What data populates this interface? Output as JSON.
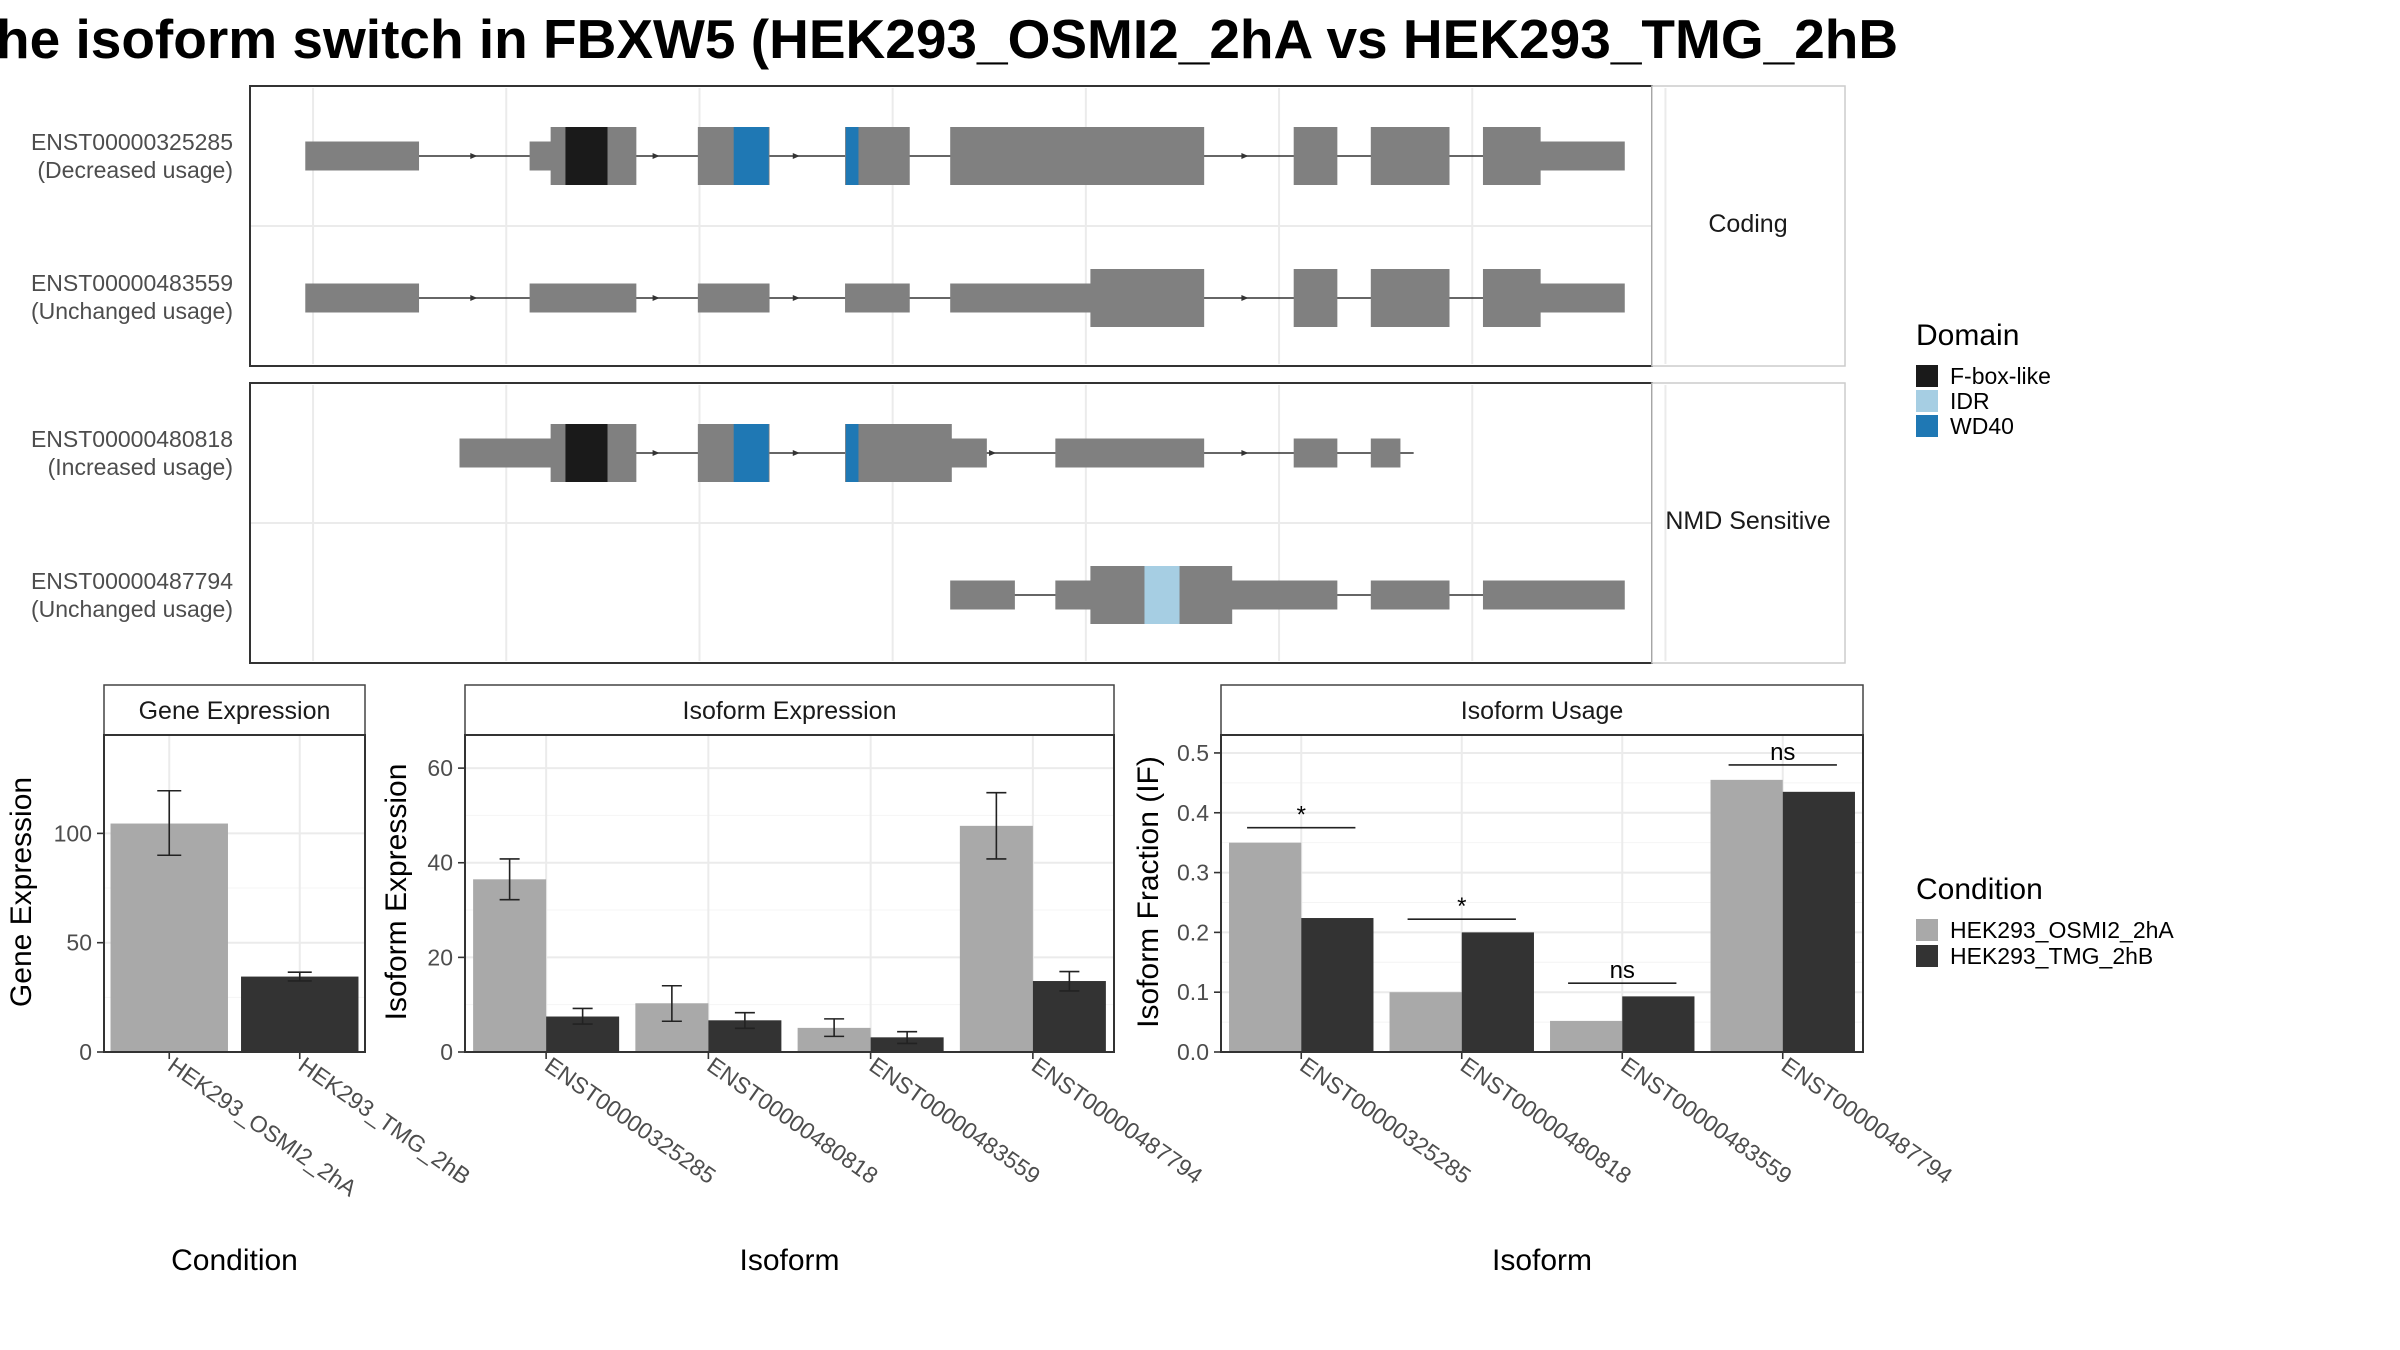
{
  "title": "he isoform switch in FBXW5 (HEK293_OSMI2_2hA vs HEK293_TMG_2hB",
  "colors": {
    "exon": "#808080",
    "intron": "#333333",
    "cond1": "#a9a9a9",
    "cond2": "#333333",
    "panel_border": "#444444",
    "grid": "#ebebeb"
  },
  "domain_legend": {
    "title": "Domain",
    "items": [
      {
        "label": "F-box-like",
        "color": "#1a1a1a"
      },
      {
        "label": "IDR",
        "color": "#a6cee3"
      },
      {
        "label": "WD40",
        "color": "#1f78b4"
      }
    ]
  },
  "condition_legend": {
    "title": "Condition",
    "items": [
      {
        "label": "HEK293_OSMI2_2hA",
        "color": "#a9a9a9"
      },
      {
        "label": "HEK293_TMG_2hB",
        "color": "#333333"
      }
    ]
  },
  "structure": {
    "groups": [
      {
        "label": "Coding",
        "transcripts": [
          {
            "id": "ENST00000325285",
            "usage": "(Decreased usage)",
            "span": [
              0.04,
              0.93
            ],
            "exons": [
              [
                0.04,
                0.12,
                "n"
              ],
              [
                0.2,
                0.215,
                "n"
              ],
              [
                0.215,
                0.275,
                "w"
              ],
              [
                0.32,
                0.34,
                "w"
              ],
              [
                0.34,
                0.37,
                "w"
              ],
              [
                0.425,
                0.435,
                "w"
              ],
              [
                0.435,
                0.47,
                "w"
              ],
              [
                0.5,
                0.575,
                "w"
              ],
              [
                0.575,
                0.68,
                "w"
              ],
              [
                0.745,
                0.775,
                "w"
              ],
              [
                0.8,
                0.855,
                "w"
              ],
              [
                0.88,
                0.92,
                "w"
              ],
              [
                0.92,
                0.98,
                "n"
              ]
            ],
            "domains": [
              [
                0.225,
                0.255,
                0
              ],
              [
                0.345,
                0.37,
                2
              ],
              [
                0.425,
                0.434,
                2
              ]
            ],
            "arrows": [
              0.16,
              0.29,
              0.39,
              0.53,
              0.71
            ]
          },
          {
            "id": "ENST00000483559",
            "usage": "(Unchanged usage)",
            "span": [
              0.04,
              0.93
            ],
            "exons": [
              [
                0.04,
                0.12,
                "n"
              ],
              [
                0.2,
                0.275,
                "n"
              ],
              [
                0.32,
                0.37,
                "n"
              ],
              [
                0.425,
                0.47,
                "n"
              ],
              [
                0.5,
                0.6,
                "n"
              ],
              [
                0.6,
                0.68,
                "w"
              ],
              [
                0.745,
                0.775,
                "w"
              ],
              [
                0.8,
                0.855,
                "w"
              ],
              [
                0.88,
                0.92,
                "w"
              ],
              [
                0.92,
                0.98,
                "n"
              ]
            ],
            "domains": [],
            "arrows": [
              0.16,
              0.29,
              0.39,
              0.53,
              0.71
            ]
          }
        ]
      },
      {
        "label": "NMD Sensitive",
        "transcripts": [
          {
            "id": "ENST00000480818",
            "usage": "(Increased usage)",
            "span": [
              0.15,
              0.83
            ],
            "exons": [
              [
                0.15,
                0.215,
                "n"
              ],
              [
                0.215,
                0.275,
                "w"
              ],
              [
                0.32,
                0.37,
                "w"
              ],
              [
                0.425,
                0.435,
                "w"
              ],
              [
                0.435,
                0.5,
                "w"
              ],
              [
                0.5,
                0.525,
                "n"
              ],
              [
                0.575,
                0.68,
                "n"
              ],
              [
                0.745,
                0.775,
                "n"
              ],
              [
                0.8,
                0.82,
                "n"
              ]
            ],
            "domains": [
              [
                0.225,
                0.255,
                0
              ],
              [
                0.345,
                0.37,
                2
              ],
              [
                0.425,
                0.434,
                2
              ]
            ],
            "arrows": [
              0.29,
              0.39,
              0.53,
              0.71
            ]
          },
          {
            "id": "ENST00000487794",
            "usage": "(Unchanged usage)",
            "span": [
              0.5,
              0.93
            ],
            "exons": [
              [
                0.5,
                0.545,
                "n"
              ],
              [
                0.575,
                0.6,
                "n"
              ],
              [
                0.6,
                0.7,
                "w"
              ],
              [
                0.7,
                0.745,
                "n"
              ],
              [
                0.745,
                0.775,
                "n"
              ],
              [
                0.8,
                0.855,
                "n"
              ],
              [
                0.88,
                0.98,
                "n"
              ]
            ],
            "domains": [
              [
                0.638,
                0.663,
                1
              ]
            ],
            "arrows": []
          }
        ]
      }
    ]
  },
  "chart_data": [
    {
      "type": "bar",
      "panel": "Gene Expression",
      "xlabel": "Condition",
      "ylabel": "Gene Expression",
      "categories": [
        "HEK293_OSMI2_2hA",
        "HEK293_TMG_2hB"
      ],
      "values": [
        104.5,
        34.5
      ],
      "error_low": [
        90,
        32.5
      ],
      "error_high": [
        119.5,
        36.5
      ],
      "ylim": [
        0,
        145
      ],
      "yticks": [
        0,
        50,
        100
      ]
    },
    {
      "type": "bar",
      "panel": "Isoform Expression",
      "xlabel": "Isoform",
      "ylabel": "Isoform Expression",
      "categories": [
        "ENST00000325285",
        "ENST00000480818",
        "ENST00000483559",
        "ENST00000487794"
      ],
      "series": [
        {
          "name": "HEK293_OSMI2_2hA",
          "values": [
            36.5,
            10.3,
            5.1,
            47.8
          ],
          "error_low": [
            32.2,
            6.5,
            3.3,
            40.8
          ],
          "error_high": [
            40.8,
            14.0,
            7.0,
            54.8
          ]
        },
        {
          "name": "HEK293_TMG_2hB",
          "values": [
            7.5,
            6.7,
            3.1,
            15.0
          ],
          "error_low": [
            5.9,
            5.0,
            1.8,
            12.9
          ],
          "error_high": [
            9.2,
            8.3,
            4.3,
            17.0
          ]
        }
      ],
      "ylim": [
        0,
        67
      ],
      "yticks": [
        0,
        20,
        40,
        60
      ]
    },
    {
      "type": "bar",
      "panel": "Isoform Usage",
      "xlabel": "Isoform",
      "ylabel": "Isoform Fraction (IF)",
      "categories": [
        "ENST00000325285",
        "ENST00000480818",
        "ENST00000483559",
        "ENST00000487794"
      ],
      "series": [
        {
          "name": "HEK293_OSMI2_2hA",
          "values": [
            0.35,
            0.1,
            0.052,
            0.455
          ]
        },
        {
          "name": "HEK293_TMG_2hB",
          "values": [
            0.224,
            0.2,
            0.093,
            0.435
          ]
        }
      ],
      "significance": [
        "*",
        "*",
        "ns",
        "ns"
      ],
      "significance_y": [
        0.375,
        0.222,
        0.115,
        0.48
      ],
      "ylim": [
        0,
        0.53
      ],
      "yticks": [
        0.0,
        0.1,
        0.2,
        0.3,
        0.4,
        0.5
      ]
    }
  ]
}
